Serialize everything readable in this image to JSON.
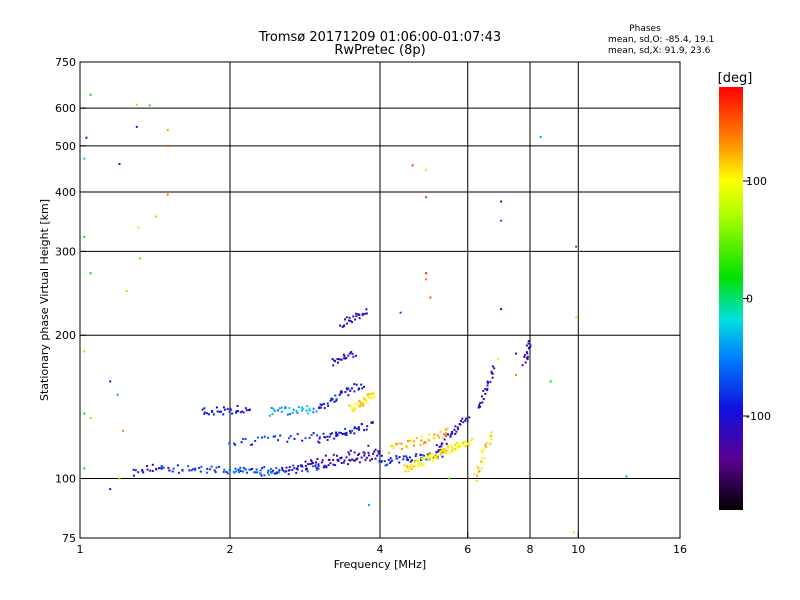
{
  "chart_data": {
    "type": "scatter",
    "title": "Tromsø 20171209 01:06:00-01:07:43",
    "subtitle": "RwPretec (8p)",
    "xlabel": "Frequency [MHz]",
    "ylabel": "Stationary phase Virtual Height [km]",
    "x_scale": "log",
    "y_scale": "log",
    "xlim": [
      1,
      16
    ],
    "ylim": [
      75,
      750
    ],
    "x_ticks": [
      1,
      2,
      4,
      6,
      8,
      10,
      16
    ],
    "x_tick_labels": [
      "1",
      "2",
      "4",
      "6",
      "8",
      "10",
      "16"
    ],
    "y_ticks": [
      75,
      100,
      200,
      300,
      400,
      500,
      600,
      750
    ],
    "y_tick_labels": [
      "75",
      "100",
      "200",
      "300",
      "400",
      "500",
      "600",
      "750"
    ],
    "x_gridlines": [
      2,
      4,
      6,
      8,
      10
    ],
    "y_gridlines": [
      100,
      200,
      300,
      400,
      500,
      600
    ],
    "grid": true,
    "stats": {
      "heading": "Phases",
      "line_o": "mean, sd,O: -85.4, 19.1",
      "line_x": "mean, sd,X:  91.9, 23.6"
    },
    "colorbar": {
      "label": "[deg]",
      "range": [
        -180,
        180
      ],
      "ticks": [
        100,
        0,
        -100
      ],
      "tick_labels": [
        "100",
        "0",
        "-100"
      ]
    },
    "traces": [
      {
        "x": [
          1.28,
          1.45
        ],
        "y": [
          103,
          106
        ],
        "phase": -100,
        "density": 4
      },
      {
        "x": [
          1.45,
          2.5
        ],
        "y": [
          105,
          103
        ],
        "phase": -80,
        "density": 14
      },
      {
        "x": [
          2.0,
          3.0
        ],
        "y": [
          103,
          105
        ],
        "phase": -60,
        "density": 8
      },
      {
        "x": [
          2.5,
          4.0
        ],
        "y": [
          103,
          112
        ],
        "phase": -110,
        "density": 16
      },
      {
        "x": [
          2.8,
          4.0
        ],
        "y": [
          108,
          116
        ],
        "phase": -120,
        "density": 8
      },
      {
        "x": [
          2.0,
          3.6
        ],
        "y": [
          118,
          126
        ],
        "phase": -80,
        "density": 10
      },
      {
        "x": [
          3.0,
          3.9
        ],
        "y": [
          120,
          130
        ],
        "phase": -105,
        "density": 8
      },
      {
        "x": [
          4.0,
          5.4
        ],
        "y": [
          108,
          113
        ],
        "phase": -90,
        "density": 12
      },
      {
        "x": [
          5.2,
          6.0
        ],
        "y": [
          115,
          135
        ],
        "phase": -110,
        "density": 8
      },
      {
        "x": [
          4.5,
          6.1
        ],
        "y": [
          105,
          120
        ],
        "phase": 100,
        "density": 22
      },
      {
        "x": [
          4.2,
          5.5
        ],
        "y": [
          115,
          125
        ],
        "phase": 120,
        "density": 10
      },
      {
        "x": [
          1.75,
          2.2
        ],
        "y": [
          138,
          140
        ],
        "phase": -100,
        "density": 8
      },
      {
        "x": [
          2.4,
          3.0
        ],
        "y": [
          138,
          140
        ],
        "phase": -40,
        "density": 8
      },
      {
        "x": [
          3.0,
          3.7
        ],
        "y": [
          141,
          158
        ],
        "phase": -100,
        "density": 10
      },
      {
        "x": [
          3.5,
          3.9
        ],
        "y": [
          140,
          150
        ],
        "phase": 110,
        "density": 8
      },
      {
        "x": [
          6.3,
          6.8
        ],
        "y": [
          140,
          170
        ],
        "phase": -100,
        "density": 6
      },
      {
        "x": [
          6.2,
          6.7
        ],
        "y": [
          100,
          125
        ],
        "phase": 110,
        "density": 6
      },
      {
        "x": [
          3.2,
          3.55
        ],
        "y": [
          175,
          183
        ],
        "phase": -110,
        "density": 5
      },
      {
        "x": [
          3.35,
          3.75
        ],
        "y": [
          211,
          225
        ],
        "phase": -110,
        "density": 6
      },
      {
        "x": [
          7.8,
          8.0
        ],
        "y": [
          175,
          195
        ],
        "phase": -120,
        "density": 4
      }
    ],
    "points": [
      {
        "x": 1.05,
        "y": 640,
        "phase": 20
      },
      {
        "x": 1.02,
        "y": 600,
        "phase": 30
      },
      {
        "x": 1.03,
        "y": 520,
        "phase": -110
      },
      {
        "x": 1.02,
        "y": 470,
        "phase": 10
      },
      {
        "x": 1.3,
        "y": 548,
        "phase": -110
      },
      {
        "x": 1.3,
        "y": 610,
        "phase": 60
      },
      {
        "x": 1.38,
        "y": 608,
        "phase": 30
      },
      {
        "x": 1.2,
        "y": 458,
        "phase": -120
      },
      {
        "x": 1.5,
        "y": 540,
        "phase": 130
      },
      {
        "x": 1.5,
        "y": 500,
        "phase": 150
      },
      {
        "x": 1.5,
        "y": 395,
        "phase": 140
      },
      {
        "x": 1.42,
        "y": 355,
        "phase": 120
      },
      {
        "x": 1.31,
        "y": 337,
        "phase": 110
      },
      {
        "x": 1.02,
        "y": 322,
        "phase": 20
      },
      {
        "x": 1.32,
        "y": 290,
        "phase": 40
      },
      {
        "x": 1.05,
        "y": 270,
        "phase": 20
      },
      {
        "x": 1.24,
        "y": 248,
        "phase": 120
      },
      {
        "x": 1.02,
        "y": 185,
        "phase": 60
      },
      {
        "x": 1.15,
        "y": 160,
        "phase": -100
      },
      {
        "x": 1.02,
        "y": 137,
        "phase": 20
      },
      {
        "x": 1.05,
        "y": 134,
        "phase": 60
      },
      {
        "x": 1.19,
        "y": 150,
        "phase": -40
      },
      {
        "x": 1.22,
        "y": 126,
        "phase": 140
      },
      {
        "x": 1.02,
        "y": 105,
        "phase": 20
      },
      {
        "x": 1.15,
        "y": 95,
        "phase": -110
      },
      {
        "x": 1.2,
        "y": 100,
        "phase": 60
      },
      {
        "x": 4.65,
        "y": 455,
        "phase": 160
      },
      {
        "x": 4.95,
        "y": 445,
        "phase": 110
      },
      {
        "x": 4.95,
        "y": 390,
        "phase": 160
      },
      {
        "x": 4.95,
        "y": 270,
        "phase": 170
      },
      {
        "x": 4.95,
        "y": 262,
        "phase": 140
      },
      {
        "x": 5.05,
        "y": 240,
        "phase": 150
      },
      {
        "x": 4.4,
        "y": 223,
        "phase": -70
      },
      {
        "x": 7.0,
        "y": 382,
        "phase": -110
      },
      {
        "x": 7.0,
        "y": 348,
        "phase": -60
      },
      {
        "x": 7.0,
        "y": 227,
        "phase": -100
      },
      {
        "x": 8.4,
        "y": 522,
        "phase": -40
      },
      {
        "x": 9.9,
        "y": 307,
        "phase": -60
      },
      {
        "x": 9.9,
        "y": 218,
        "phase": 110
      },
      {
        "x": 8.8,
        "y": 160,
        "phase": 20
      },
      {
        "x": 12.5,
        "y": 101,
        "phase": -40
      },
      {
        "x": 3.8,
        "y": 88,
        "phase": -40
      },
      {
        "x": 9.8,
        "y": 77,
        "phase": 110
      },
      {
        "x": 5.5,
        "y": 100,
        "phase": 40
      },
      {
        "x": 7.5,
        "y": 183,
        "phase": -110
      },
      {
        "x": 6.9,
        "y": 178,
        "phase": 110
      },
      {
        "x": 7.5,
        "y": 165,
        "phase": 140
      }
    ]
  }
}
